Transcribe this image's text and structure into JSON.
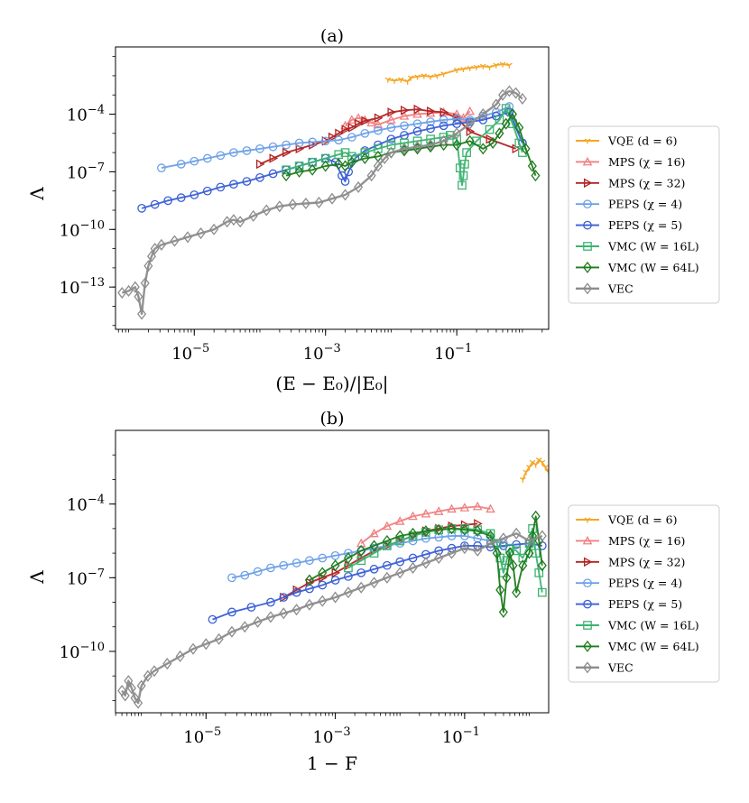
{
  "chart_data": [
    {
      "id": "a",
      "type": "line",
      "title": "(a)",
      "xlabel": "(E − E₀)/|E₀|",
      "ylabel": "Λ",
      "xscale": "log",
      "yscale": "log",
      "xlim_log10": [
        -6.2,
        0.4
      ],
      "ylim_log10": [
        -15.2,
        -0.5
      ],
      "x_ticks": [
        {
          "v": -5,
          "base": "10",
          "exp": "−5"
        },
        {
          "v": -3,
          "base": "10",
          "exp": "−3"
        },
        {
          "v": -1,
          "base": "10",
          "exp": "−1"
        }
      ],
      "y_ticks": [
        {
          "v": -13,
          "base": "10",
          "exp": "−13"
        },
        {
          "v": -10,
          "base": "10",
          "exp": "−10"
        },
        {
          "v": -7,
          "base": "10",
          "exp": "−7"
        },
        {
          "v": -4,
          "base": "10",
          "exp": "−4"
        }
      ],
      "legend_position": "outside-right",
      "series": [
        {
          "name": "VQE (d = 6)",
          "color": "#f5a623",
          "marker": "tri_down",
          "thick": false,
          "log_x": [
            -2.05,
            -1.95,
            -1.85,
            -1.75,
            -1.7,
            -1.6,
            -1.5,
            -1.4,
            -1.3,
            -1.2,
            -1.0,
            -0.9,
            -0.8,
            -0.7,
            -0.6,
            -0.5,
            -0.4,
            -0.3,
            -0.2
          ],
          "log_y": [
            -2.2,
            -2.25,
            -2.2,
            -2.3,
            -2.1,
            -2.05,
            -2.0,
            -2.05,
            -2.0,
            -1.9,
            -1.7,
            -1.65,
            -1.6,
            -1.55,
            -1.5,
            -1.55,
            -1.45,
            -1.4,
            -1.45
          ]
        },
        {
          "name": "MPS (χ = 16)",
          "color": "#f08080",
          "marker": "tri_up",
          "thick": false,
          "log_x": [
            -2.7,
            -2.6,
            -2.5,
            -2.4,
            -2.3,
            -2.2,
            -2.0,
            -1.8,
            -1.6,
            -1.4,
            -1.2,
            -1.0,
            -0.9,
            -0.8
          ],
          "log_y": [
            -4.6,
            -4.3,
            -4.2,
            -4.3,
            -4.45,
            -4.55,
            -4.3,
            -4.1,
            -4.0,
            -3.95,
            -3.9,
            -4.0,
            -4.2,
            -3.85
          ]
        },
        {
          "name": "MPS (χ = 32)",
          "color": "#b22222",
          "marker": "tri_right",
          "thick": false,
          "log_x": [
            -4.0,
            -3.8,
            -3.6,
            -3.4,
            -3.2,
            -3.0,
            -2.9,
            -2.8,
            -2.7,
            -2.6,
            -2.5,
            -2.4,
            -2.2,
            -2.0,
            -1.8,
            -1.6,
            -1.4,
            -1.2,
            -1.0,
            -0.8,
            -0.5,
            -0.1
          ],
          "log_y": [
            -6.6,
            -6.3,
            -6.0,
            -5.8,
            -5.6,
            -5.4,
            -5.2,
            -5.0,
            -4.8,
            -4.7,
            -4.5,
            -4.35,
            -4.2,
            -3.9,
            -3.8,
            -3.75,
            -3.85,
            -3.9,
            -4.2,
            -4.9,
            -5.3,
            -5.8
          ]
        },
        {
          "name": "PEPS (χ = 4)",
          "color": "#6ca0e8",
          "marker": "circle",
          "thick": false,
          "log_x": [
            -5.5,
            -5.2,
            -5.0,
            -4.8,
            -4.6,
            -4.4,
            -4.2,
            -4.0,
            -3.8,
            -3.6,
            -3.4,
            -3.2,
            -3.0,
            -2.8,
            -2.6,
            -2.4,
            -2.2,
            -2.0,
            -1.8,
            -1.6,
            -1.4,
            -1.2,
            -1.0,
            -0.8,
            -0.6,
            -0.4,
            -0.2,
            0.0
          ],
          "log_y": [
            -6.8,
            -6.6,
            -6.45,
            -6.3,
            -6.15,
            -6.0,
            -5.9,
            -5.8,
            -5.7,
            -5.6,
            -5.5,
            -5.45,
            -5.4,
            -5.35,
            -5.2,
            -5.0,
            -4.85,
            -4.7,
            -4.6,
            -4.5,
            -4.4,
            -4.3,
            -4.25,
            -4.3,
            -4.1,
            -3.9,
            -3.6,
            -5.5
          ]
        },
        {
          "name": "PEPS (χ = 5)",
          "color": "#3a5fd6",
          "marker": "circle",
          "thick": false,
          "log_x": [
            -5.8,
            -5.6,
            -5.4,
            -5.2,
            -5.0,
            -4.8,
            -4.6,
            -4.4,
            -4.2,
            -4.0,
            -3.8,
            -3.6,
            -3.4,
            -3.2,
            -3.0,
            -2.85,
            -2.75,
            -2.7,
            -2.65,
            -2.55,
            -2.4,
            -2.2,
            -2.0,
            -1.8,
            -1.6,
            -1.4,
            -1.2,
            -1.0,
            -0.8,
            -0.6,
            -0.4,
            -0.2,
            0.0
          ],
          "log_y": [
            -8.9,
            -8.7,
            -8.5,
            -8.35,
            -8.2,
            -8.0,
            -7.8,
            -7.65,
            -7.5,
            -7.3,
            -7.1,
            -6.9,
            -6.7,
            -6.5,
            -6.3,
            -6.5,
            -7.2,
            -7.5,
            -7.0,
            -6.3,
            -5.9,
            -5.6,
            -5.3,
            -5.1,
            -4.9,
            -4.75,
            -4.6,
            -4.5,
            -4.4,
            -4.3,
            -4.1,
            -3.9,
            -5.5
          ]
        },
        {
          "name": "VMC (W = 16L)",
          "color": "#3cb371",
          "marker": "square",
          "thick": false,
          "log_x": [
            -3.6,
            -3.4,
            -3.2,
            -3.0,
            -2.8,
            -2.7,
            -2.6,
            -2.4,
            -2.2,
            -2.0,
            -1.8,
            -1.6,
            -1.4,
            -1.2,
            -1.1,
            -1.0,
            -0.95,
            -0.92,
            -0.9,
            -0.88,
            -0.85,
            -0.7,
            -0.5,
            -0.35,
            -0.25,
            -0.15,
            -0.05,
            0.0
          ],
          "log_y": [
            -6.9,
            -6.7,
            -6.5,
            -6.3,
            -6.1,
            -6.0,
            -6.2,
            -6.0,
            -5.8,
            -5.6,
            -5.5,
            -5.4,
            -5.3,
            -5.2,
            -5.1,
            -5.3,
            -6.8,
            -7.7,
            -7.2,
            -6.6,
            -6.0,
            -5.4,
            -4.8,
            -4.3,
            -3.7,
            -4.5,
            -5.5,
            -6.0
          ]
        },
        {
          "name": "VMC (W = 64L)",
          "color": "#1e7b1e",
          "marker": "diamond",
          "thick": false,
          "log_x": [
            -3.6,
            -3.4,
            -3.2,
            -3.0,
            -2.8,
            -2.7,
            -2.6,
            -2.4,
            -2.2,
            -2.0,
            -1.8,
            -1.6,
            -1.4,
            -1.2,
            -1.0,
            -0.8,
            -0.6,
            -0.45,
            -0.35,
            -0.25,
            -0.15,
            -0.05,
            0.05,
            0.15,
            0.2
          ],
          "log_y": [
            -7.2,
            -7.0,
            -6.9,
            -6.7,
            -6.6,
            -6.7,
            -6.5,
            -6.3,
            -6.2,
            -6.0,
            -5.9,
            -5.8,
            -5.7,
            -5.6,
            -5.6,
            -5.4,
            -5.8,
            -5.5,
            -5.0,
            -4.5,
            -4.0,
            -4.7,
            -5.8,
            -6.7,
            -7.2
          ]
        },
        {
          "name": "VEC",
          "color": "#8c8c8c",
          "marker": "diamond",
          "thick": true,
          "log_x": [
            -6.1,
            -6.0,
            -5.9,
            -5.85,
            -5.8,
            -5.75,
            -5.7,
            -5.65,
            -5.6,
            -5.5,
            -5.3,
            -5.1,
            -4.9,
            -4.7,
            -4.5,
            -4.4,
            -4.3,
            -4.1,
            -3.9,
            -3.7,
            -3.5,
            -3.3,
            -3.1,
            -2.9,
            -2.7,
            -2.5,
            -2.3,
            -2.2,
            -2.1,
            -2.0,
            -1.8,
            -1.6,
            -1.4,
            -1.2,
            -1.0,
            -0.8,
            -0.6,
            -0.4,
            -0.3,
            -0.2,
            -0.1,
            0.0
          ],
          "log_y": [
            -13.3,
            -13.2,
            -13.0,
            -13.5,
            -14.4,
            -12.8,
            -11.9,
            -11.4,
            -11.0,
            -10.8,
            -10.6,
            -10.4,
            -10.2,
            -10.0,
            -9.6,
            -9.5,
            -9.6,
            -9.3,
            -9.0,
            -8.8,
            -8.7,
            -8.65,
            -8.6,
            -8.4,
            -8.2,
            -7.8,
            -7.2,
            -6.7,
            -6.3,
            -6.0,
            -5.8,
            -5.7,
            -5.6,
            -5.4,
            -5.0,
            -4.5,
            -4.0,
            -3.5,
            -3.0,
            -2.8,
            -2.9,
            -3.2
          ]
        }
      ]
    },
    {
      "id": "b",
      "type": "line",
      "title": "(b)",
      "xlabel": "1 − F",
      "ylabel": "Λ",
      "xscale": "log",
      "yscale": "log",
      "xlim_log10": [
        -6.4,
        0.3
      ],
      "ylim_log10": [
        -12.5,
        -1.0
      ],
      "x_ticks": [
        {
          "v": -5,
          "base": "10",
          "exp": "−5"
        },
        {
          "v": -3,
          "base": "10",
          "exp": "−3"
        },
        {
          "v": -1,
          "base": "10",
          "exp": "−1"
        }
      ],
      "y_ticks": [
        {
          "v": -10,
          "base": "10",
          "exp": "−10"
        },
        {
          "v": -7,
          "base": "10",
          "exp": "−7"
        },
        {
          "v": -4,
          "base": "10",
          "exp": "−4"
        }
      ],
      "legend_position": "outside-right",
      "series": [
        {
          "name": "VQE (d = 6)",
          "color": "#f5a623",
          "marker": "tri_down",
          "thick": false,
          "log_x": [
            -0.1,
            -0.05,
            0.0,
            0.05,
            0.1,
            0.15,
            0.2,
            0.25,
            0.3,
            0.35,
            0.4,
            0.45,
            0.5
          ],
          "log_y": [
            -3.0,
            -2.7,
            -2.5,
            -2.3,
            -2.4,
            -2.2,
            -2.3,
            -2.5,
            -2.7,
            -2.2,
            -2.3,
            -2.2,
            -2.4
          ]
        },
        {
          "name": "MPS (χ = 16)",
          "color": "#f08080",
          "marker": "tri_up",
          "thick": false,
          "log_x": [
            -2.6,
            -2.4,
            -2.2,
            -2.0,
            -1.8,
            -1.6,
            -1.4,
            -1.2,
            -1.0,
            -0.8,
            -0.6
          ],
          "log_y": [
            -5.6,
            -5.2,
            -4.9,
            -4.7,
            -4.5,
            -4.4,
            -4.3,
            -4.2,
            -4.15,
            -4.1,
            -4.2
          ]
        },
        {
          "name": "MPS (χ = 32)",
          "color": "#b22222",
          "marker": "tri_right",
          "thick": false,
          "log_x": [
            -3.8,
            -3.6,
            -3.4,
            -3.2,
            -3.0,
            -2.8,
            -2.6,
            -2.4,
            -2.2,
            -2.0,
            -1.8,
            -1.6,
            -1.4,
            -1.2,
            -1.0,
            -0.8
          ],
          "log_y": [
            -7.8,
            -7.5,
            -7.2,
            -7.0,
            -6.8,
            -6.5,
            -6.2,
            -5.9,
            -5.7,
            -5.5,
            -5.3,
            -5.1,
            -5.0,
            -4.9,
            -4.85,
            -4.8
          ]
        },
        {
          "name": "PEPS (χ = 4)",
          "color": "#6ca0e8",
          "marker": "circle",
          "thick": false,
          "log_x": [
            -4.6,
            -4.4,
            -4.2,
            -4.0,
            -3.8,
            -3.6,
            -3.4,
            -3.2,
            -3.0,
            -2.8,
            -2.6,
            -2.4,
            -2.2,
            -2.0,
            -1.8,
            -1.6,
            -1.4,
            -1.2,
            -1.0,
            -0.8,
            -0.6,
            -0.4
          ],
          "log_y": [
            -7.0,
            -6.9,
            -6.75,
            -6.6,
            -6.5,
            -6.4,
            -6.3,
            -6.2,
            -6.1,
            -6.0,
            -5.9,
            -5.8,
            -5.7,
            -5.6,
            -5.5,
            -5.4,
            -5.35,
            -5.3,
            -5.3,
            -5.4,
            -5.5,
            -5.6
          ]
        },
        {
          "name": "PEPS (χ = 5)",
          "color": "#3a5fd6",
          "marker": "circle",
          "thick": false,
          "log_x": [
            -4.9,
            -4.6,
            -4.3,
            -4.0,
            -3.8,
            -3.6,
            -3.4,
            -3.2,
            -3.0,
            -2.8,
            -2.6,
            -2.4,
            -2.2,
            -2.0,
            -1.8,
            -1.6,
            -1.4,
            -1.2,
            -1.0,
            -0.8,
            -0.6,
            -0.4,
            -0.2,
            0.0,
            0.2
          ],
          "log_y": [
            -8.7,
            -8.4,
            -8.2,
            -8.0,
            -7.8,
            -7.6,
            -7.45,
            -7.3,
            -7.1,
            -6.95,
            -6.8,
            -6.65,
            -6.5,
            -6.35,
            -6.2,
            -6.05,
            -5.9,
            -5.8,
            -5.7,
            -5.7,
            -5.75,
            -5.7,
            -5.65,
            -5.6,
            -5.7
          ]
        },
        {
          "name": "VMC (W = 16L)",
          "color": "#3cb371",
          "marker": "square",
          "thick": false,
          "log_x": [
            -2.8,
            -2.6,
            -2.4,
            -2.2,
            -2.0,
            -1.8,
            -1.6,
            -1.4,
            -1.2,
            -1.0,
            -0.8,
            -0.6,
            -0.5,
            -0.45,
            -0.4,
            -0.35,
            -0.3,
            -0.2,
            -0.1,
            0.0,
            0.05,
            0.1,
            0.15,
            0.2
          ],
          "log_y": [
            -6.6,
            -6.3,
            -6.0,
            -5.7,
            -5.5,
            -5.3,
            -5.15,
            -5.05,
            -5.0,
            -5.0,
            -5.05,
            -5.2,
            -5.6,
            -6.2,
            -6.8,
            -6.3,
            -5.8,
            -5.9,
            -6.2,
            -5.6,
            -5.0,
            -6.0,
            -6.8,
            -7.6
          ]
        },
        {
          "name": "VMC (W = 64L)",
          "color": "#1e7b1e",
          "marker": "diamond",
          "thick": false,
          "log_x": [
            -3.4,
            -3.2,
            -3.0,
            -2.8,
            -2.6,
            -2.4,
            -2.2,
            -2.0,
            -1.8,
            -1.6,
            -1.4,
            -1.2,
            -1.0,
            -0.8,
            -0.6,
            -0.5,
            -0.45,
            -0.4,
            -0.35,
            -0.3,
            -0.25,
            -0.2,
            -0.1,
            0.0,
            0.05,
            0.1,
            0.15,
            0.2
          ],
          "log_y": [
            -7.1,
            -6.8,
            -6.5,
            -6.2,
            -5.9,
            -5.7,
            -5.5,
            -5.3,
            -5.2,
            -5.1,
            -5.05,
            -5.0,
            -5.05,
            -5.1,
            -5.3,
            -6.0,
            -7.5,
            -8.4,
            -7.0,
            -6.0,
            -6.5,
            -7.6,
            -6.5,
            -6.0,
            -5.3,
            -4.5,
            -5.5,
            -6.5
          ]
        },
        {
          "name": "VEC",
          "color": "#8c8c8c",
          "marker": "diamond",
          "thick": true,
          "log_x": [
            -6.3,
            -6.25,
            -6.2,
            -6.15,
            -6.1,
            -6.05,
            -6.0,
            -5.9,
            -5.8,
            -5.6,
            -5.4,
            -5.2,
            -5.0,
            -4.8,
            -4.6,
            -4.4,
            -4.2,
            -4.0,
            -3.8,
            -3.6,
            -3.4,
            -3.2,
            -3.0,
            -2.8,
            -2.6,
            -2.4,
            -2.2,
            -2.0,
            -1.8,
            -1.6,
            -1.4,
            -1.2,
            -1.0,
            -0.8,
            -0.6,
            -0.4,
            -0.2,
            0.0,
            0.2
          ],
          "log_y": [
            -11.6,
            -11.8,
            -11.2,
            -11.5,
            -11.9,
            -12.1,
            -11.4,
            -11.0,
            -10.8,
            -10.5,
            -10.2,
            -9.9,
            -9.7,
            -9.5,
            -9.2,
            -9.0,
            -8.8,
            -8.6,
            -8.45,
            -8.3,
            -8.1,
            -7.95,
            -7.8,
            -7.6,
            -7.4,
            -7.2,
            -7.0,
            -6.8,
            -6.6,
            -6.4,
            -6.2,
            -6.0,
            -5.8,
            -5.9,
            -5.6,
            -5.4,
            -5.2,
            -5.5,
            -5.3
          ]
        }
      ]
    }
  ]
}
